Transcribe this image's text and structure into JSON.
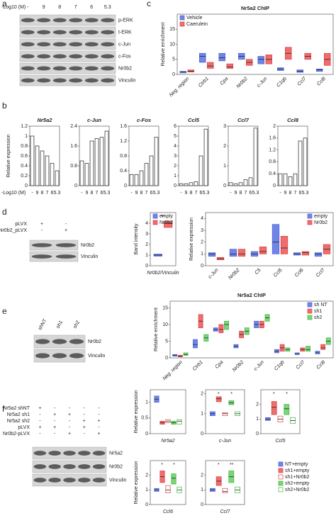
{
  "panel_labels": [
    "a",
    "b",
    "c",
    "d",
    "e",
    "f"
  ],
  "blots": [
    {
      "header": {
        "label": "-Log10 (M)",
        "lanes": [
          "-",
          "9",
          "8",
          "7",
          "6",
          "5.3"
        ]
      },
      "bands": [
        "p-ERK",
        "t-ERK",
        "c-Jun",
        "c-Fos",
        "Nr0b2",
        "Vinculin"
      ]
    },
    {
      "conditions": [
        {
          "name": "pLVX",
          "marks": [
            "+",
            "-"
          ]
        },
        {
          "name": "Nr0b2_pLVX",
          "marks": [
            "-",
            "+"
          ]
        }
      ],
      "bands": [
        "Nr0b2",
        "Vinculin"
      ]
    },
    {
      "header": {
        "lanes": [
          "shNT",
          "sh1",
          "sh2"
        ]
      },
      "bands": [
        "Nr0b2",
        "Vinculin"
      ]
    },
    {
      "conditions": [
        {
          "name": "Nr5a2 shNT",
          "marks": [
            "+",
            "-",
            "-",
            "-",
            "-"
          ]
        },
        {
          "name": "Nr5a2 sh1",
          "marks": [
            "-",
            "+",
            "+",
            "-",
            "-"
          ]
        },
        {
          "name": "Nr5a2 sh2",
          "marks": [
            "-",
            "-",
            "-",
            "+",
            "+"
          ]
        },
        {
          "name": "pLVX",
          "marks": [
            "+",
            "+",
            "-",
            "+",
            "-"
          ]
        },
        {
          "name": "Nr0b2-pLVX",
          "marks": [
            "-",
            "-",
            "+",
            "-",
            "+"
          ]
        }
      ],
      "bands": [
        "Nr5a2",
        "Nr0b2",
        "Vinculin"
      ]
    }
  ],
  "chart_data": [
    {
      "type": "bar",
      "title": "Nr5a2",
      "ylabel": "Relative expression",
      "xlabel": "-Log10 (M)",
      "categories": [
        "-",
        "9",
        "8",
        "7",
        "6",
        "5.3"
      ],
      "values": [
        1,
        0.8,
        0.7,
        0.6,
        0.45,
        0.3
      ],
      "color": "#ffffff",
      "ylim": [
        0,
        1.2
      ],
      "yticks": [
        0,
        0.2,
        0.4,
        0.6,
        0.8,
        1,
        1.2
      ]
    },
    {
      "type": "bar",
      "title": "c-Jun",
      "categories": [
        "-",
        "9",
        "8",
        "7",
        "6",
        "5.3"
      ],
      "values": [
        1,
        0.9,
        1.8,
        1.9,
        1.95,
        2.2
      ],
      "color": "#ffffff",
      "ylim": [
        0,
        2.4
      ],
      "yticks": [
        0,
        0.8,
        1.6,
        2.4
      ]
    },
    {
      "type": "bar",
      "title": "c-Fos",
      "categories": [
        "-",
        "9",
        "8",
        "7",
        "6",
        "5.3"
      ],
      "values": [
        0.3,
        0.3,
        0.4,
        0.6,
        0.8,
        1.3
      ],
      "color": "#ffffff",
      "ylim": [
        0,
        1.6
      ],
      "yticks": [
        0,
        0.4,
        0.8,
        1.2,
        1.6
      ]
    },
    {
      "type": "bar",
      "title": "Ccl5",
      "categories": [
        "-",
        "9",
        "8",
        "7",
        "6",
        "5.3"
      ],
      "values": [
        0.2,
        0.2,
        0.3,
        0.4,
        3,
        5.7
      ],
      "color": "#ffffff",
      "ylim": [
        0,
        6
      ],
      "yticks": [
        0,
        1,
        2,
        3,
        4,
        5,
        6
      ]
    },
    {
      "type": "bar",
      "title": "Ccl7",
      "categories": [
        "-",
        "9",
        "8",
        "7",
        "6",
        "5.3"
      ],
      "values": [
        0.15,
        0.1,
        0.15,
        0.3,
        0.4,
        2.9
      ],
      "color": "#ffffff",
      "ylim": [
        0,
        3
      ],
      "yticks": [
        0,
        1,
        2,
        3
      ]
    },
    {
      "type": "bar",
      "title": "Ccl8",
      "categories": [
        "-",
        "9",
        "8",
        "7",
        "6",
        "5.3"
      ],
      "values": [
        0.4,
        0.4,
        0.3,
        0.4,
        1.5,
        1.6
      ],
      "color": "#ffffff",
      "ylim": [
        0,
        2
      ],
      "yticks": [
        0,
        0.4,
        0.8,
        1.2,
        1.6,
        2
      ]
    },
    {
      "type": "box",
      "title": "Nr5a2 ChIP",
      "ylabel": "Relative enrichment",
      "legend": "top-left",
      "categories": [
        "Neg. region",
        "Ctrb1",
        "Cpa",
        "Nr0b2",
        "c-Jun",
        "C1qb",
        "Ccl7",
        "Ccl8"
      ],
      "ylim": [
        0,
        20
      ],
      "yticks": [
        0,
        5,
        10,
        15
      ],
      "series": [
        {
          "name": "Vehicle",
          "color": "#4a63d8",
          "fill": "#6f86e6",
          "values": [
            [
              0.5,
              0.8,
              1
            ],
            [
              4,
              6,
              7
            ],
            [
              4.5,
              5.5,
              7
            ],
            [
              5,
              6,
              7
            ],
            [
              3.5,
              5,
              6
            ],
            [
              1.3,
              1.8,
              2.2
            ],
            [
              0.7,
              1,
              1.5
            ],
            [
              1,
              1.5,
              1.8
            ]
          ]
        },
        {
          "name": "Caerulein",
          "color": "#e04040",
          "fill": "#ee6d6d",
          "values": [
            [
              0.8,
              1,
              1.5
            ],
            [
              2,
              2.8,
              4
            ],
            [
              2,
              2.5,
              3.5
            ],
            [
              3,
              4,
              5
            ],
            [
              3.5,
              5,
              6.5
            ],
            [
              5,
              7,
              9
            ],
            [
              5,
              6,
              7
            ],
            [
              3,
              5,
              7
            ]
          ]
        }
      ]
    },
    {
      "type": "box",
      "ylabel": "Band intensity",
      "legend": "top-left",
      "annotations": [
        "**"
      ],
      "categories": [
        "Nr0b2/Vinculin"
      ],
      "ylim": [
        0,
        5
      ],
      "yticks": [
        0,
        1,
        2,
        3,
        4
      ],
      "series": [
        {
          "name": "empty",
          "color": "#4a63d8",
          "fill": "#6f86e6",
          "values": [
            [
              0.9,
              1,
              1.1
            ]
          ]
        },
        {
          "name": "Nr0b2",
          "color": "#e04040",
          "fill": "#ee6d6d",
          "values": [
            [
              3.6,
              4,
              4.2
            ]
          ]
        }
      ]
    },
    {
      "type": "box",
      "ylabel": "Relative expression",
      "legend": "top-right",
      "categories": [
        "c-Jun",
        "Nr0b2",
        "C5",
        "Ccl5",
        "Ccl6",
        "Ccl7"
      ],
      "ylim": [
        0,
        4.5
      ],
      "yticks": [
        0,
        1,
        2,
        3,
        4
      ],
      "series": [
        {
          "name": "empty",
          "color": "#4a63d8",
          "fill": "#6f86e6",
          "values": [
            [
              0.8,
              1,
              1.1
            ],
            [
              0.8,
              1,
              1.4
            ],
            [
              0.8,
              1,
              1.2
            ],
            [
              1,
              2,
              3.5
            ],
            [
              0.9,
              1,
              1.1
            ],
            [
              0.8,
              1,
              1.1
            ]
          ]
        },
        {
          "name": "Nr0b2",
          "color": "#e04040",
          "fill": "#ee6d6d",
          "values": [
            [
              0.5,
              0.6,
              0.7
            ],
            [
              0.8,
              1,
              1.4
            ],
            [
              1,
              1.2,
              1.6
            ],
            [
              1,
              1.5,
              2.5
            ],
            [
              0.9,
              1.1,
              1.2
            ],
            [
              1,
              1.4,
              1.8
            ]
          ]
        }
      ]
    },
    {
      "type": "box",
      "title": "Nr5a2 ChIP",
      "ylabel": "Relative enrichment",
      "legend": "top-right",
      "categories": [
        "Neg. region",
        "Ctrb1",
        "Cpa",
        "Nr0b2",
        "c-Jun",
        "C1qb",
        "Ccl7",
        "Ccl8"
      ],
      "ylim": [
        0,
        17
      ],
      "yticks": [
        0,
        5,
        10,
        15
      ],
      "series": [
        {
          "name": "sh NT",
          "color": "#4a63d8",
          "fill": "#6f86e6",
          "values": [
            [
              0.5,
              0.8,
              1
            ],
            [
              3,
              4,
              5.5
            ],
            [
              8,
              8.5,
              9
            ],
            [
              3,
              3.5,
              4
            ],
            [
              9,
              10,
              11
            ],
            [
              1.5,
              2,
              2.5
            ],
            [
              1,
              1.2,
              1.5
            ],
            [
              1.2,
              1.5,
              2
            ]
          ]
        },
        {
          "name": "sh1",
          "color": "#e04040",
          "fill": "#ee6d6d",
          "values": [
            [
              0.3,
              0.5,
              0.8
            ],
            [
              9,
              11,
              13
            ],
            [
              7.5,
              8.5,
              10
            ],
            [
              6,
              7,
              8
            ],
            [
              9,
              10,
              11
            ],
            [
              2,
              3,
              4
            ],
            [
              2,
              2.5,
              3
            ],
            [
              2.5,
              3,
              4
            ]
          ]
        },
        {
          "name": "sh2",
          "color": "#3cb83c",
          "fill": "#7ad67a",
          "values": [
            [
              0.8,
              1,
              1.5
            ],
            [
              5,
              6,
              7
            ],
            [
              8.5,
              10,
              11
            ],
            [
              7,
              8,
              9
            ],
            [
              11,
              12,
              13
            ],
            [
              2,
              2.5,
              3
            ],
            [
              2,
              2.5,
              3.5
            ],
            [
              4,
              5,
              6
            ]
          ]
        }
      ]
    },
    {
      "type": "box",
      "ylabel": "Relative expression",
      "categories": [
        "Nr5a2"
      ],
      "ylim": [
        0,
        1.4
      ],
      "yticks": [
        0,
        0.5,
        1
      ],
      "series": [
        {
          "name": "NT+empty",
          "color": "#4a63d8",
          "fill": "#6f86e6",
          "values": [
            [
              1,
              1.1,
              1.2
            ]
          ]
        },
        {
          "name": "sh1+empty",
          "color": "#e04040",
          "fill": "#ee6d6d",
          "values": [
            [
              0.3,
              0.35,
              0.4
            ]
          ]
        },
        {
          "name": "sh1+Nr0b2",
          "color": "#e04040",
          "fill": "#ffffff",
          "values": [
            [
              0.35,
              0.4,
              0.45
            ]
          ]
        },
        {
          "name": "sh2+empty",
          "color": "#3cb83c",
          "fill": "#7ad67a",
          "values": [
            [
              0.3,
              0.35,
              0.4
            ]
          ]
        },
        {
          "name": "sh2+Nr0b2",
          "color": "#3cb83c",
          "fill": "#ffffff",
          "values": [
            [
              0.3,
              0.4,
              0.45
            ]
          ]
        }
      ]
    },
    {
      "type": "box",
      "categories": [
        "c-Jun"
      ],
      "annotations": [
        "*",
        "*"
      ],
      "ylim": [
        0,
        2.2
      ],
      "yticks": [
        0,
        1,
        2
      ],
      "series": [
        {
          "name": "NT+empty",
          "color": "#4a63d8",
          "fill": "#6f86e6",
          "values": [
            [
              0.9,
              1,
              1.1
            ]
          ]
        },
        {
          "name": "sh1+empty",
          "color": "#e04040",
          "fill": "#ee6d6d",
          "values": [
            [
              1.6,
              1.75,
              1.85
            ]
          ]
        },
        {
          "name": "sh1+Nr0b2",
          "color": "#e04040",
          "fill": "#ffffff",
          "values": [
            [
              0.9,
              1,
              1.05
            ]
          ]
        },
        {
          "name": "sh2+empty",
          "color": "#3cb83c",
          "fill": "#7ad67a",
          "values": [
            [
              1.45,
              1.55,
              1.65
            ]
          ]
        },
        {
          "name": "sh2+Nr0b2",
          "color": "#3cb83c",
          "fill": "#ffffff",
          "values": [
            [
              0.9,
              1,
              1.1
            ]
          ]
        }
      ]
    },
    {
      "type": "box",
      "categories": [
        "Ccl5"
      ],
      "annotations": [
        "*",
        "*"
      ],
      "ylim": [
        0,
        3
      ],
      "yticks": [
        0,
        1,
        2
      ],
      "series": [
        {
          "name": "NT+empty",
          "color": "#4a63d8",
          "fill": "#6f86e6",
          "values": [
            [
              0.9,
              1,
              1.1
            ]
          ]
        },
        {
          "name": "sh1+empty",
          "color": "#e04040",
          "fill": "#ee6d6d",
          "values": [
            [
              1.3,
              1.8,
              2.2
            ]
          ]
        },
        {
          "name": "sh1+Nr0b2",
          "color": "#e04040",
          "fill": "#ffffff",
          "values": [
            [
              0.8,
              1,
              1.2
            ]
          ]
        },
        {
          "name": "sh2+empty",
          "color": "#3cb83c",
          "fill": "#7ad67a",
          "values": [
            [
              1.3,
              1.7,
              2
            ]
          ]
        },
        {
          "name": "sh2+Nr0b2",
          "color": "#3cb83c",
          "fill": "#ffffff",
          "values": [
            [
              0.7,
              0.9,
              1.1
            ]
          ]
        }
      ]
    },
    {
      "type": "box",
      "ylabel": "Relative expression",
      "categories": [
        "Ccl6"
      ],
      "annotations": [
        "*",
        "*"
      ],
      "ylim": [
        0,
        3
      ],
      "yticks": [
        0,
        1,
        2
      ],
      "series": [
        {
          "name": "NT+empty",
          "color": "#4a63d8",
          "fill": "#6f86e6",
          "values": [
            [
              0.9,
              1,
              1.1
            ]
          ]
        },
        {
          "name": "sh1+empty",
          "color": "#e04040",
          "fill": "#ee6d6d",
          "values": [
            [
              1.5,
              1.9,
              2.3
            ]
          ]
        },
        {
          "name": "sh1+Nr0b2",
          "color": "#e04040",
          "fill": "#ffffff",
          "values": [
            [
              0.8,
              1,
              1.3
            ]
          ]
        },
        {
          "name": "sh2+empty",
          "color": "#3cb83c",
          "fill": "#7ad67a",
          "values": [
            [
              1.4,
              1.8,
              2.1
            ]
          ]
        },
        {
          "name": "sh2+Nr0b2",
          "color": "#3cb83c",
          "fill": "#ffffff",
          "values": [
            [
              0.8,
              1,
              1.2
            ]
          ]
        }
      ]
    },
    {
      "type": "box",
      "categories": [
        "Ccl7"
      ],
      "annotations": [
        "*",
        "**"
      ],
      "legend": "right",
      "ylim": [
        0,
        3
      ],
      "yticks": [
        0,
        1,
        2
      ],
      "series": [
        {
          "name": "NT+empty",
          "color": "#4a63d8",
          "fill": "#6f86e6",
          "values": [
            [
              0.9,
              1,
              1.1
            ]
          ]
        },
        {
          "name": "sh1+empty",
          "color": "#e04040",
          "fill": "#ee6d6d",
          "values": [
            [
              1.3,
              1.6,
              1.9
            ]
          ]
        },
        {
          "name": "sh1+Nr0b2",
          "color": "#e04040",
          "fill": "#ffffff",
          "values": [
            [
              0.8,
              0.9,
              1.1
            ]
          ]
        },
        {
          "name": "sh2+empty",
          "color": "#3cb83c",
          "fill": "#7ad67a",
          "values": [
            [
              1.5,
              1.9,
              2.3
            ]
          ]
        },
        {
          "name": "sh2+Nr0b2",
          "color": "#3cb83c",
          "fill": "#ffffff",
          "values": [
            [
              0.8,
              1,
              1.2
            ]
          ]
        }
      ]
    }
  ]
}
